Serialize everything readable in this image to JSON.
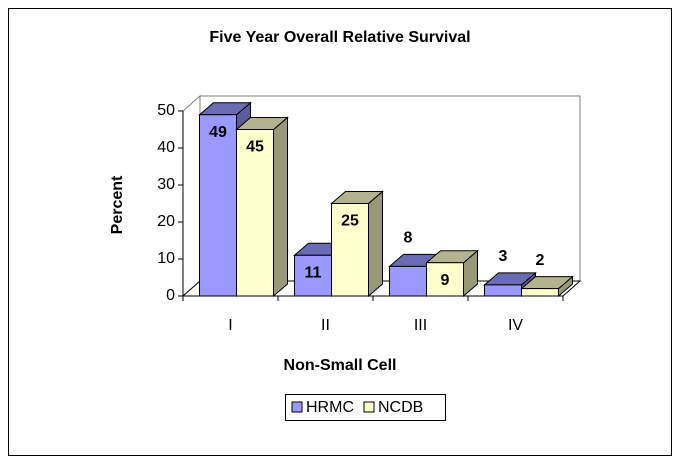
{
  "chart_data": {
    "type": "bar3d",
    "title": "Five Year Overall Relative Survival",
    "x_label": "Non-Small Cell",
    "y_label": "Percent",
    "categories": [
      "I",
      "II",
      "III",
      "IV"
    ],
    "series": [
      {
        "name": "HRMC",
        "color": "#9999ff",
        "values": [
          49,
          11,
          8,
          3
        ]
      },
      {
        "name": "NCDB",
        "color": "#ffffcc",
        "values": [
          45,
          25,
          9,
          2
        ]
      }
    ],
    "ylim": [
      0,
      50
    ],
    "yticks": [
      0,
      10,
      20,
      30,
      40,
      50
    ],
    "legend": "bottom"
  }
}
